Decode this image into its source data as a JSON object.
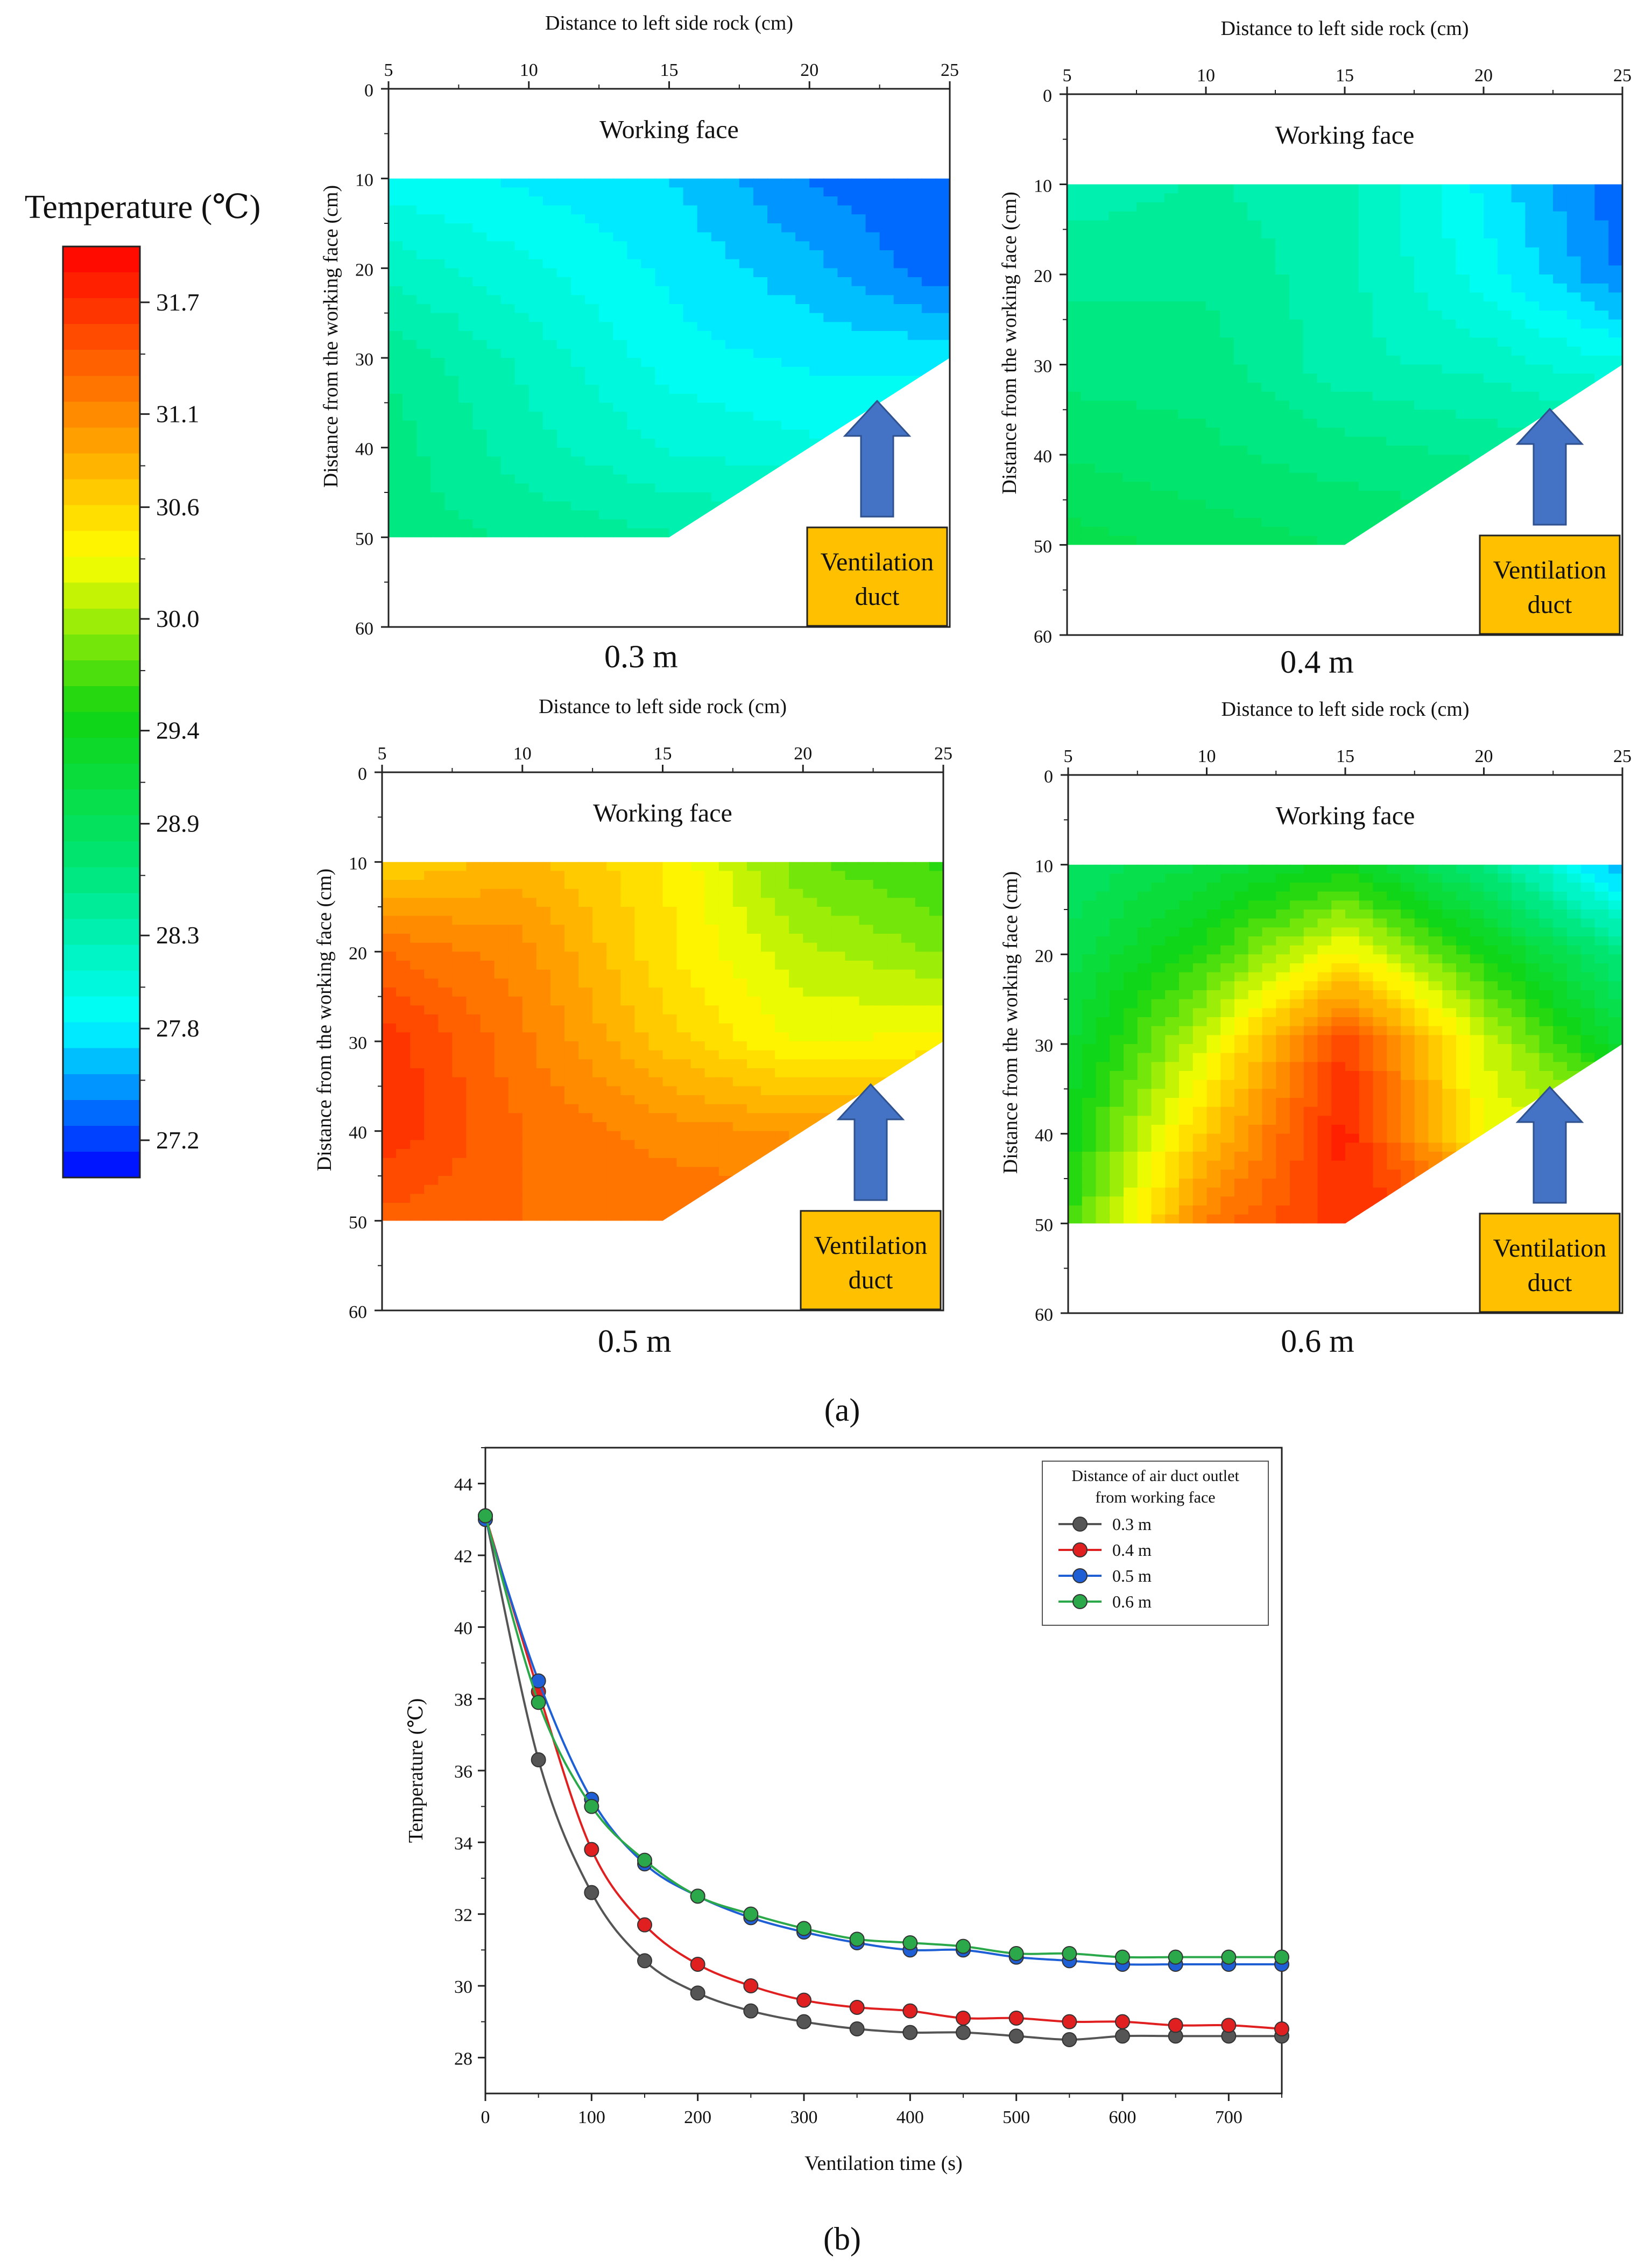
{
  "figure": {
    "panel_a_label": "(a)",
    "panel_b_label": "(b)"
  },
  "colorbar": {
    "title": "Temperature (℃)",
    "min": 27.0,
    "max": 32.0,
    "ticks": [
      31.7,
      31.1,
      30.6,
      30.0,
      29.4,
      28.9,
      28.3,
      27.8,
      27.2
    ],
    "tick_labels": [
      "31.7",
      "31.1",
      "30.6",
      "30.0",
      "29.4",
      "28.9",
      "28.3",
      "27.8",
      "27.2"
    ],
    "colors": [
      "#0000ff",
      "#00ffff",
      "#00e676",
      "#11d411",
      "#ffff00",
      "#ff8000",
      "#ff0000"
    ]
  },
  "contour_panels": [
    {
      "caption": "0.3 m",
      "xlabel": "Distance to left side rock (cm)",
      "ylabel": "Distance from the working face (cm)",
      "x_ticks": [
        "5",
        "10",
        "15",
        "20",
        "25"
      ],
      "y_ticks": [
        "0",
        "10",
        "20",
        "30",
        "40",
        "50",
        "60"
      ],
      "working_face_label": "Working face",
      "duct_label_line1": "Ventilation",
      "duct_label_line2": "duct",
      "points": [
        [
          5,
          10,
          27.9
        ],
        [
          10,
          10,
          27.8
        ],
        [
          15,
          10,
          27.7
        ],
        [
          20,
          10,
          27.4
        ],
        [
          25,
          10,
          27.3
        ],
        [
          5,
          20,
          28.2
        ],
        [
          10,
          20,
          28.0
        ],
        [
          15,
          20,
          27.8
        ],
        [
          20,
          20,
          27.6
        ],
        [
          25,
          20,
          27.3
        ],
        [
          5,
          30,
          28.5
        ],
        [
          10,
          30,
          28.2
        ],
        [
          15,
          30,
          27.9
        ],
        [
          20,
          30,
          27.8
        ],
        [
          25,
          30,
          27.8
        ],
        [
          5,
          40,
          28.6
        ],
        [
          10,
          40,
          28.3
        ],
        [
          15,
          40,
          28.1
        ],
        [
          20,
          40,
          28.0
        ],
        [
          5,
          50,
          28.6
        ],
        [
          10,
          50,
          28.5
        ],
        [
          15,
          50,
          28.4
        ]
      ]
    },
    {
      "caption": "0.4 m",
      "xlabel": "Distance to left side rock (cm)",
      "ylabel": "Distance from the working face (cm)",
      "x_ticks": [
        "5",
        "10",
        "15",
        "20",
        "25"
      ],
      "y_ticks": [
        "0",
        "10",
        "20",
        "30",
        "40",
        "50",
        "60"
      ],
      "working_face_label": "Working face",
      "duct_label_line1": "Ventilation",
      "duct_label_line2": "duct",
      "points": [
        [
          5,
          10,
          28.3
        ],
        [
          10,
          10,
          28.4
        ],
        [
          15,
          10,
          28.3
        ],
        [
          20,
          10,
          27.8
        ],
        [
          25,
          10,
          27.3
        ],
        [
          5,
          20,
          28.5
        ],
        [
          10,
          20,
          28.5
        ],
        [
          15,
          20,
          28.3
        ],
        [
          20,
          20,
          27.9
        ],
        [
          25,
          20,
          27.4
        ],
        [
          5,
          30,
          28.6
        ],
        [
          10,
          30,
          28.6
        ],
        [
          15,
          30,
          28.3
        ],
        [
          20,
          30,
          28.2
        ],
        [
          25,
          30,
          28.0
        ],
        [
          5,
          40,
          28.8
        ],
        [
          10,
          40,
          28.7
        ],
        [
          15,
          40,
          28.6
        ],
        [
          20,
          40,
          28.5
        ],
        [
          5,
          50,
          29.0
        ],
        [
          10,
          50,
          28.9
        ],
        [
          15,
          50,
          28.8
        ]
      ]
    },
    {
      "caption": "0.5 m",
      "xlabel": "Distance to left side rock (cm)",
      "ylabel": "Distance from the working face (cm)",
      "x_ticks": [
        "5",
        "10",
        "15",
        "20",
        "25"
      ],
      "y_ticks": [
        "0",
        "10",
        "20",
        "30",
        "40",
        "50",
        "60"
      ],
      "working_face_label": "Working face",
      "duct_label_line1": "Ventilation",
      "duct_label_line2": "duct",
      "points": [
        [
          5,
          10,
          30.6
        ],
        [
          10,
          10,
          30.8
        ],
        [
          15,
          10,
          30.5
        ],
        [
          20,
          10,
          29.8
        ],
        [
          25,
          10,
          29.6
        ],
        [
          5,
          20,
          31.3
        ],
        [
          10,
          20,
          31.1
        ],
        [
          15,
          20,
          30.5
        ],
        [
          20,
          20,
          30.1
        ],
        [
          25,
          20,
          29.9
        ],
        [
          5,
          30,
          31.7
        ],
        [
          10,
          30,
          31.2
        ],
        [
          15,
          30,
          30.7
        ],
        [
          20,
          30,
          30.3
        ],
        [
          25,
          30,
          30.4
        ],
        [
          5,
          40,
          31.7
        ],
        [
          10,
          40,
          31.3
        ],
        [
          15,
          40,
          31.1
        ],
        [
          20,
          40,
          31.0
        ],
        [
          5,
          50,
          31.4
        ],
        [
          10,
          50,
          31.3
        ],
        [
          15,
          50,
          31.3
        ]
      ]
    },
    {
      "caption": "0.6 m",
      "xlabel": "Distance to left side rock (cm)",
      "ylabel": "Distance from the working face (cm)",
      "x_ticks": [
        "5",
        "10",
        "15",
        "20",
        "25"
      ],
      "y_ticks": [
        "0",
        "10",
        "20",
        "30",
        "40",
        "50",
        "60"
      ],
      "working_face_label": "Working face",
      "duct_label_line1": "Ventilation",
      "duct_label_line2": "duct",
      "points": [
        [
          5,
          10,
          28.8
        ],
        [
          10,
          10,
          29.1
        ],
        [
          15,
          10,
          29.4
        ],
        [
          20,
          10,
          28.6
        ],
        [
          25,
          10,
          27.5
        ],
        [
          5,
          20,
          29.0
        ],
        [
          10,
          20,
          29.6
        ],
        [
          15,
          20,
          30.4
        ],
        [
          20,
          20,
          29.5
        ],
        [
          25,
          20,
          28.6
        ],
        [
          5,
          30,
          29.2
        ],
        [
          10,
          30,
          30.2
        ],
        [
          15,
          30,
          31.6
        ],
        [
          20,
          30,
          30.2
        ],
        [
          25,
          30,
          29.2
        ],
        [
          5,
          40,
          29.4
        ],
        [
          10,
          40,
          30.7
        ],
        [
          15,
          40,
          31.8
        ],
        [
          20,
          40,
          30.3
        ],
        [
          5,
          50,
          29.6
        ],
        [
          10,
          50,
          31.2
        ],
        [
          15,
          50,
          31.7
        ]
      ]
    }
  ],
  "chart_data": {
    "type": "line",
    "title": "",
    "xlabel": "Ventilation time (s)",
    "ylabel": "Temperature (℃)",
    "xlim": [
      0,
      750
    ],
    "ylim": [
      27,
      45
    ],
    "x_ticks": [
      0,
      100,
      200,
      300,
      400,
      500,
      600,
      700
    ],
    "y_ticks": [
      28,
      30,
      32,
      34,
      36,
      38,
      40,
      42,
      44
    ],
    "legend_title_line1": "Distance of air duct outlet",
    "legend_title_line2": "from working face",
    "legend_position": "top-right",
    "x": [
      0,
      50,
      100,
      150,
      200,
      250,
      300,
      350,
      400,
      450,
      500,
      550,
      600,
      650,
      700,
      750
    ],
    "series": [
      {
        "name": "0.3 m",
        "color": "#555555",
        "values": [
          43.1,
          36.3,
          32.6,
          30.7,
          29.8,
          29.3,
          29.0,
          28.8,
          28.7,
          28.7,
          28.6,
          28.5,
          28.6,
          28.6,
          28.6,
          28.6
        ]
      },
      {
        "name": "0.4 m",
        "color": "#e02020",
        "values": [
          43.1,
          38.2,
          33.8,
          31.7,
          30.6,
          30.0,
          29.6,
          29.4,
          29.3,
          29.1,
          29.1,
          29.0,
          29.0,
          28.9,
          28.9,
          28.8
        ]
      },
      {
        "name": "0.5 m",
        "color": "#1f5fd6",
        "values": [
          43.0,
          38.5,
          35.2,
          33.4,
          32.5,
          31.9,
          31.5,
          31.2,
          31.0,
          31.0,
          30.8,
          30.7,
          30.6,
          30.6,
          30.6,
          30.6
        ]
      },
      {
        "name": "0.6 m",
        "color": "#2aa84a",
        "values": [
          43.1,
          37.9,
          35.0,
          33.5,
          32.5,
          32.0,
          31.6,
          31.3,
          31.2,
          31.1,
          30.9,
          30.9,
          30.8,
          30.8,
          30.8,
          30.8
        ]
      }
    ]
  }
}
